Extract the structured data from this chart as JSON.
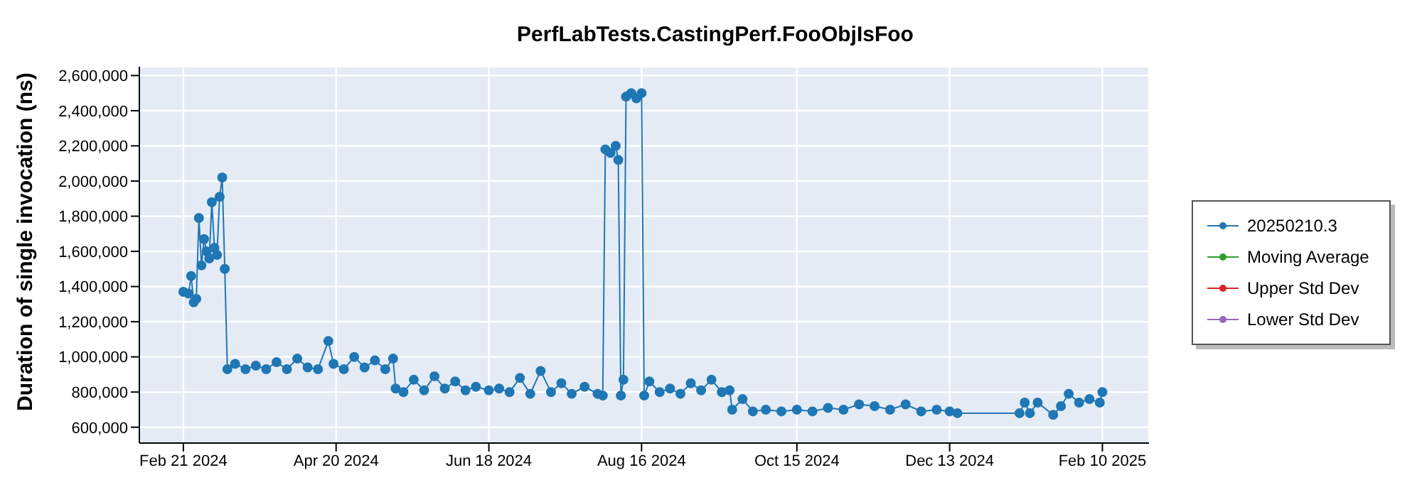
{
  "chart_data": {
    "type": "line",
    "title": "PerfLabTests.CastingPerf.FooObjIsFoo",
    "ylabel": "Duration of single invocation (ns)",
    "x": [
      "2024-02-21",
      "2024-02-23",
      "2024-02-24",
      "2024-02-25",
      "2024-02-26",
      "2024-02-27",
      "2024-02-28",
      "2024-02-29",
      "2024-03-01",
      "2024-03-02",
      "2024-03-03",
      "2024-03-04",
      "2024-03-05",
      "2024-03-06",
      "2024-03-07",
      "2024-03-08",
      "2024-03-09",
      "2024-03-12",
      "2024-03-16",
      "2024-03-20",
      "2024-03-24",
      "2024-03-28",
      "2024-04-01",
      "2024-04-05",
      "2024-04-09",
      "2024-04-13",
      "2024-04-17",
      "2024-04-19",
      "2024-04-23",
      "2024-04-27",
      "2024-05-01",
      "2024-05-05",
      "2024-05-09",
      "2024-05-12",
      "2024-05-13",
      "2024-05-16",
      "2024-05-20",
      "2024-05-24",
      "2024-05-28",
      "2024-06-01",
      "2024-06-05",
      "2024-06-09",
      "2024-06-13",
      "2024-06-18",
      "2024-06-22",
      "2024-06-26",
      "2024-06-30",
      "2024-07-04",
      "2024-07-08",
      "2024-07-12",
      "2024-07-16",
      "2024-07-20",
      "2024-07-25",
      "2024-07-30",
      "2024-08-01",
      "2024-08-02",
      "2024-08-04",
      "2024-08-06",
      "2024-08-07",
      "2024-08-08",
      "2024-08-09",
      "2024-08-10",
      "2024-08-12",
      "2024-08-14",
      "2024-08-16",
      "2024-08-17",
      "2024-08-19",
      "2024-08-23",
      "2024-08-27",
      "2024-08-31",
      "2024-09-04",
      "2024-09-08",
      "2024-09-12",
      "2024-09-16",
      "2024-09-19",
      "2024-09-20",
      "2024-09-24",
      "2024-09-28",
      "2024-10-03",
      "2024-10-09",
      "2024-10-15",
      "2024-10-21",
      "2024-10-27",
      "2024-11-02",
      "2024-11-08",
      "2024-11-14",
      "2024-11-20",
      "2024-11-26",
      "2024-12-02",
      "2024-12-08",
      "2024-12-13",
      "2024-12-16",
      "2025-01-09",
      "2025-01-11",
      "2025-01-13",
      "2025-01-16",
      "2025-01-22",
      "2025-01-25",
      "2025-01-28",
      "2025-02-01",
      "2025-02-05",
      "2025-02-09",
      "2025-02-10"
    ],
    "series": [
      {
        "name": "20250210.3",
        "color": "#1f77b4",
        "values": [
          1370000,
          1360000,
          1460000,
          1310000,
          1330000,
          1790000,
          1520000,
          1670000,
          1600000,
          1560000,
          1880000,
          1620000,
          1580000,
          1910000,
          2020000,
          1500000,
          930000,
          960000,
          930000,
          950000,
          930000,
          970000,
          930000,
          990000,
          940000,
          930000,
          1090000,
          960000,
          930000,
          1000000,
          940000,
          980000,
          930000,
          990000,
          820000,
          800000,
          870000,
          810000,
          890000,
          820000,
          860000,
          810000,
          830000,
          810000,
          820000,
          800000,
          880000,
          790000,
          920000,
          800000,
          850000,
          790000,
          830000,
          790000,
          780000,
          2180000,
          2160000,
          2200000,
          2120000,
          780000,
          870000,
          2480000,
          2500000,
          2470000,
          2500000,
          780000,
          860000,
          800000,
          820000,
          790000,
          850000,
          810000,
          870000,
          800000,
          810000,
          700000,
          760000,
          690000,
          700000,
          690000,
          700000,
          690000,
          710000,
          700000,
          730000,
          720000,
          700000,
          730000,
          690000,
          700000,
          690000,
          680000,
          680000,
          740000,
          680000,
          740000,
          670000,
          720000,
          790000,
          740000,
          760000,
          740000,
          800000
        ]
      },
      {
        "name": "Moving Average",
        "color": "#2ca02c",
        "values": [
          null,
          null,
          null,
          null,
          null,
          null,
          null,
          null,
          null,
          null,
          null,
          null,
          null,
          null,
          null,
          null,
          null,
          null,
          null,
          null,
          null,
          null,
          null,
          null,
          null,
          null,
          null,
          null,
          null,
          null,
          null,
          null,
          null,
          null,
          null,
          null,
          null,
          null,
          null,
          null,
          null,
          null,
          null,
          null,
          null,
          null,
          null,
          null,
          null,
          null,
          null,
          null,
          null,
          null,
          null,
          null,
          null,
          null,
          null,
          null,
          null,
          null,
          null,
          null,
          null,
          null,
          null,
          null,
          null,
          null,
          null,
          null,
          null,
          null,
          null,
          null,
          null,
          null,
          null,
          null,
          null,
          null,
          null,
          null,
          null,
          null,
          null,
          null,
          null,
          null,
          null,
          null,
          null,
          null,
          null,
          null,
          null,
          null,
          null,
          null,
          null,
          null,
          null
        ]
      },
      {
        "name": "Upper Std Dev",
        "color": "#d62728",
        "values": [
          null,
          null,
          null,
          null,
          null,
          null,
          null,
          null,
          null,
          null,
          null,
          null,
          null,
          null,
          null,
          null,
          null,
          null,
          null,
          null,
          null,
          null,
          null,
          null,
          null,
          null,
          null,
          null,
          null,
          null,
          null,
          null,
          null,
          null,
          null,
          null,
          null,
          null,
          null,
          null,
          null,
          null,
          null,
          null,
          null,
          null,
          null,
          null,
          null,
          null,
          null,
          null,
          null,
          null,
          null,
          null,
          null,
          null,
          null,
          null,
          null,
          null,
          null,
          null,
          null,
          null,
          null,
          null,
          null,
          null,
          null,
          null,
          null,
          null,
          null,
          null,
          null,
          null,
          null,
          null,
          null,
          null,
          null,
          null,
          null,
          null,
          null,
          null,
          null,
          null,
          null,
          null,
          null,
          null,
          null,
          null,
          null,
          null,
          null,
          null,
          null,
          null,
          null
        ]
      },
      {
        "name": "Lower Std Dev",
        "color": "#9467bd",
        "values": [
          null,
          null,
          null,
          null,
          null,
          null,
          null,
          null,
          null,
          null,
          null,
          null,
          null,
          null,
          null,
          null,
          null,
          null,
          null,
          null,
          null,
          null,
          null,
          null,
          null,
          null,
          null,
          null,
          null,
          null,
          null,
          null,
          null,
          null,
          null,
          null,
          null,
          null,
          null,
          null,
          null,
          null,
          null,
          null,
          null,
          null,
          null,
          null,
          null,
          null,
          null,
          null,
          null,
          null,
          null,
          null,
          null,
          null,
          null,
          null,
          null,
          null,
          null,
          null,
          null,
          null,
          null,
          null,
          null,
          null,
          null,
          null,
          null,
          null,
          null,
          null,
          null,
          null,
          null,
          null,
          null,
          null,
          null,
          null,
          null,
          null,
          null,
          null,
          null,
          null,
          null,
          null,
          null,
          null,
          null,
          null,
          null,
          null,
          null,
          null,
          null,
          null,
          null
        ]
      }
    ],
    "xlim": [
      "2024-02-04",
      "2025-02-28"
    ],
    "xticks": [
      {
        "value": "2024-02-21",
        "label": "Feb 21 2024"
      },
      {
        "value": "2024-04-20",
        "label": "Apr 20 2024"
      },
      {
        "value": "2024-06-18",
        "label": "Jun 18 2024"
      },
      {
        "value": "2024-08-16",
        "label": "Aug 16 2024"
      },
      {
        "value": "2024-10-15",
        "label": "Oct 15 2024"
      },
      {
        "value": "2024-12-13",
        "label": "Dec 13 2024"
      },
      {
        "value": "2025-02-10",
        "label": "Feb 10 2025"
      }
    ],
    "ylim": [
      510000,
      2650000
    ],
    "yticks": [
      {
        "value": 600000,
        "label": "600,000"
      },
      {
        "value": 800000,
        "label": "800,000"
      },
      {
        "value": 1000000,
        "label": "1,000,000"
      },
      {
        "value": 1200000,
        "label": "1,200,000"
      },
      {
        "value": 1400000,
        "label": "1,400,000"
      },
      {
        "value": 1600000,
        "label": "1,600,000"
      },
      {
        "value": 1800000,
        "label": "1,800,000"
      },
      {
        "value": 2000000,
        "label": "2,000,000"
      },
      {
        "value": 2200000,
        "label": "2,200,000"
      },
      {
        "value": 2400000,
        "label": "2,400,000"
      },
      {
        "value": 2600000,
        "label": "2,600,000"
      }
    ],
    "grid": true,
    "legend": "right",
    "marker": "circle",
    "line_style": "solid"
  }
}
